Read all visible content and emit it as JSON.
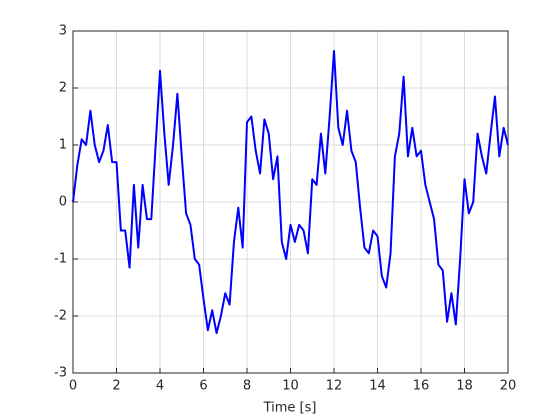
{
  "chart_data": {
    "type": "line",
    "xlabel": "Time [s]",
    "series": [
      {
        "color": "#0000ff",
        "x": [
          0,
          0.2,
          0.4,
          0.6,
          0.8,
          1,
          1.2,
          1.4,
          1.6,
          1.8,
          2,
          2.2,
          2.4,
          2.6,
          2.8,
          3,
          3.2,
          3.4,
          3.6,
          3.8,
          4,
          4.2,
          4.4,
          4.6,
          4.8,
          5,
          5.2,
          5.4,
          5.6,
          5.8,
          6,
          6.2,
          6.4,
          6.6,
          6.8,
          7,
          7.2,
          7.4,
          7.6,
          7.8,
          8,
          8.2,
          8.4,
          8.6,
          8.8,
          9,
          9.2,
          9.4,
          9.6,
          9.8,
          10,
          10.2,
          10.4,
          10.6,
          10.8,
          11,
          11.2,
          11.4,
          11.6,
          11.8,
          12,
          12.2,
          12.4,
          12.6,
          12.8,
          13,
          13.2,
          13.4,
          13.6,
          13.8,
          14,
          14.2,
          14.4,
          14.6,
          14.8,
          15,
          15.2,
          15.4,
          15.6,
          15.8,
          16,
          16.2,
          16.4,
          16.6,
          16.8,
          17,
          17.2,
          17.4,
          17.6,
          17.8,
          18,
          18.2,
          18.4,
          18.6,
          18.8,
          19,
          19.2,
          19.4,
          19.6,
          19.8,
          20
        ],
        "values": [
          0,
          0.65,
          1.1,
          1,
          1.6,
          1,
          0.7,
          0.9,
          1.35,
          0.7,
          0.7,
          -0.5,
          -0.5,
          -1.15,
          0.3,
          -0.8,
          0.3,
          -0.3,
          -0.3,
          1,
          2.3,
          1.2,
          0.3,
          1,
          1.9,
          0.8,
          -0.2,
          -0.4,
          -1,
          -1.1,
          -1.7,
          -2.25,
          -1.9,
          -2.3,
          -2,
          -1.6,
          -1.8,
          -0.7,
          -0.1,
          -0.8,
          1.4,
          1.5,
          0.9,
          0.5,
          1.45,
          1.2,
          0.4,
          0.8,
          -0.7,
          -1,
          -0.4,
          -0.7,
          -0.4,
          -0.5,
          -0.9,
          0.4,
          0.3,
          1.2,
          0.5,
          1.5,
          2.65,
          1.3,
          1,
          1.6,
          0.9,
          0.7,
          -0.1,
          -0.8,
          -0.9,
          -0.5,
          -0.6,
          -1.3,
          -1.5,
          -0.9,
          0.8,
          1.2,
          2.2,
          0.8,
          1.3,
          0.8,
          0.9,
          0.3,
          0,
          -0.3,
          -1.1,
          -1.2,
          -2.1,
          -1.6,
          -2.15,
          -1,
          0.4,
          -0.2,
          0,
          1.2,
          0.8,
          0.5,
          1.2,
          1.85,
          0.8,
          1.3,
          1
        ]
      }
    ],
    "xlim": [
      0,
      20
    ],
    "xticks": [
      0,
      2,
      4,
      6,
      8,
      10,
      12,
      14,
      16,
      18,
      20
    ],
    "ylim": [
      -3,
      3
    ],
    "yticks": [
      -3,
      -2,
      -1,
      0,
      1,
      2,
      3
    ],
    "grid": true
  }
}
